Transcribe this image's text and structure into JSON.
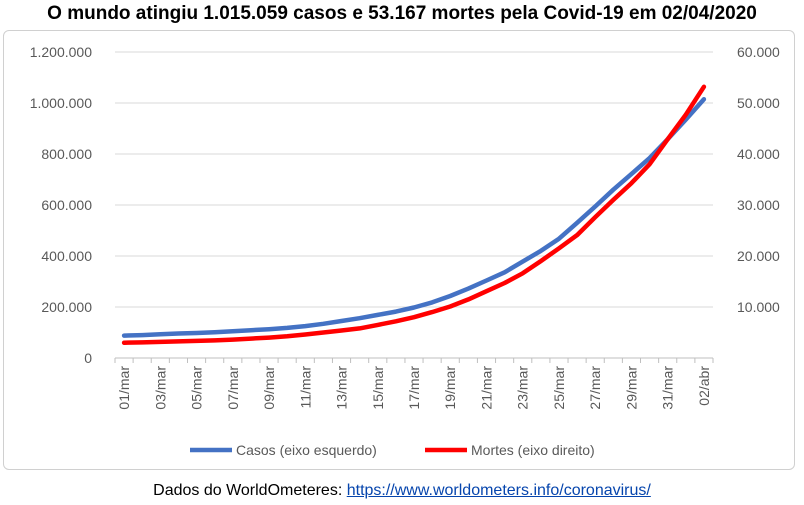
{
  "chart_data": {
    "type": "line",
    "title": "O mundo atingiu 1.015.059 casos e 53.167 mortes pela Covid-19 em 02/04/2020",
    "categories": [
      "01/mar",
      "02/mar",
      "03/mar",
      "04/mar",
      "05/mar",
      "06/mar",
      "07/mar",
      "08/mar",
      "09/mar",
      "10/mar",
      "11/mar",
      "12/mar",
      "13/mar",
      "14/mar",
      "15/mar",
      "16/mar",
      "17/mar",
      "18/mar",
      "19/mar",
      "20/mar",
      "21/mar",
      "22/mar",
      "23/mar",
      "24/mar",
      "25/mar",
      "26/mar",
      "27/mar",
      "28/mar",
      "29/mar",
      "30/mar",
      "31/mar",
      "01/abr",
      "02/abr"
    ],
    "x_tick_labels": [
      "01/mar",
      "03/mar",
      "05/mar",
      "07/mar",
      "09/mar",
      "11/mar",
      "13/mar",
      "15/mar",
      "17/mar",
      "19/mar",
      "21/mar",
      "23/mar",
      "25/mar",
      "27/mar",
      "29/mar",
      "31/mar",
      "02/abr"
    ],
    "y_left": {
      "ylim": [
        0,
        1200000
      ],
      "ticks": [
        "0",
        "200.000",
        "400.000",
        "600.000",
        "800.000",
        "1.000.000",
        "1.200.000"
      ]
    },
    "y_right": {
      "ylim": [
        0,
        60000
      ],
      "ticks": [
        "",
        "10.000",
        "20.000",
        "30.000",
        "40.000",
        "50.000",
        "60.000"
      ]
    },
    "series": [
      {
        "name": "Casos (eixo esquerdo)",
        "axis": "left",
        "color": "#4472C4",
        "values": [
          88000,
          90000,
          93000,
          96000,
          98000,
          101000,
          105000,
          109000,
          113000,
          118000,
          125000,
          134000,
          145000,
          156000,
          169000,
          182000,
          198000,
          218000,
          243000,
          272000,
          304000,
          336000,
          378000,
          420000,
          468000,
          530000,
          594000,
          660000,
          722000,
          784000,
          858000,
          935000,
          1015059
        ]
      },
      {
        "name": "Mortes (eixo direito)",
        "axis": "right",
        "color": "#FF0000",
        "values": [
          3000,
          3050,
          3150,
          3250,
          3350,
          3450,
          3600,
          3800,
          4000,
          4250,
          4600,
          5000,
          5400,
          5800,
          6500,
          7200,
          8000,
          9000,
          10100,
          11500,
          13100,
          14700,
          16600,
          19000,
          21500,
          24100,
          27600,
          31000,
          34300,
          38000,
          42900,
          47700,
          53167
        ]
      }
    ],
    "grid": "horizontal",
    "legend": "bottom"
  },
  "source": {
    "label": "Dados do WorldOmeteres:",
    "link_text": "https://www.worldometers.info/coronavirus/"
  }
}
